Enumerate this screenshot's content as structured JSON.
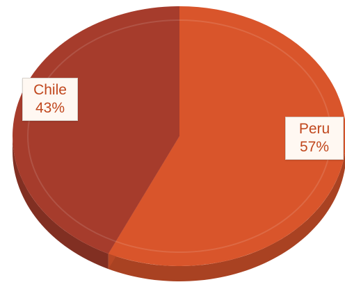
{
  "chart_data": {
    "type": "pie",
    "title": "",
    "categories": [
      "Peru",
      "Chile"
    ],
    "values": [
      57,
      43
    ],
    "labels": [
      {
        "name": "Chile",
        "value_text": "43%"
      },
      {
        "name": "Peru",
        "value_text": "57%"
      }
    ],
    "legend": "none",
    "style": "3d",
    "colors": {
      "Peru": "#d9552b",
      "Chile": "#a63c2c"
    }
  }
}
